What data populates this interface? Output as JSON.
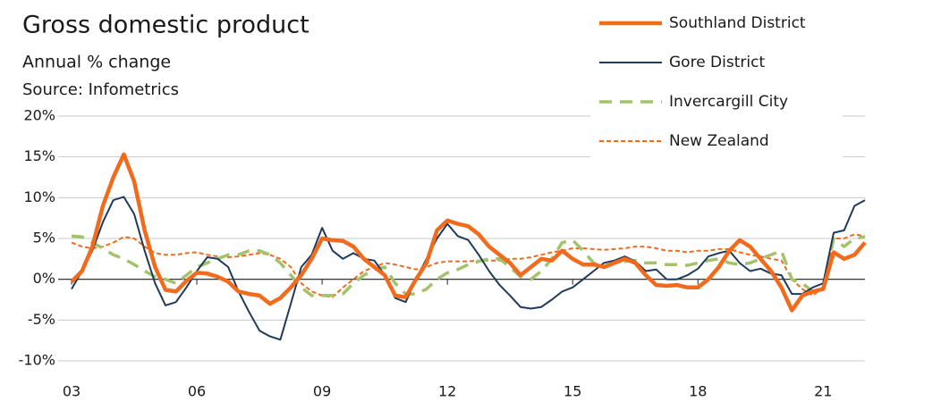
{
  "chart_data": {
    "type": "line",
    "title": "Gross domestic product",
    "subtitle": "Annual % change",
    "source": "Source: Infometrics",
    "x": [
      2003,
      2003.25,
      2003.5,
      2003.75,
      2004,
      2004.25,
      2004.5,
      2004.75,
      2005,
      2005.25,
      2005.5,
      2005.75,
      2006,
      2006.25,
      2006.5,
      2006.75,
      2007,
      2007.25,
      2007.5,
      2007.75,
      2008,
      2008.25,
      2008.5,
      2008.75,
      2009,
      2009.25,
      2009.5,
      2009.75,
      2010,
      2010.25,
      2010.5,
      2010.75,
      2011,
      2011.25,
      2011.5,
      2011.75,
      2012,
      2012.25,
      2012.5,
      2012.75,
      2013,
      2013.25,
      2013.5,
      2013.75,
      2014,
      2014.25,
      2014.5,
      2014.75,
      2015,
      2015.25,
      2015.5,
      2015.75,
      2016,
      2016.25,
      2016.5,
      2016.75,
      2017,
      2017.25,
      2017.5,
      2017.75,
      2018,
      2018.25,
      2018.5,
      2018.75,
      2019,
      2019.25,
      2019.5,
      2019.75,
      2020,
      2020.25,
      2020.5,
      2020.75,
      2021,
      2021.25,
      2021.5,
      2021.75,
      2022
    ],
    "series": [
      {
        "name": "Southland District",
        "color": "#f26b1d",
        "line_style": "solid",
        "width": 4.5,
        "values": [
          -0.3,
          1,
          4,
          9,
          12.5,
          15.3,
          12,
          6,
          1.5,
          -1.3,
          -1.5,
          -0.2,
          0.8,
          0.7,
          0.3,
          -0.3,
          -1.5,
          -1.8,
          -2,
          -3,
          -2.3,
          -1,
          0.5,
          2.5,
          5,
          4.8,
          4.7,
          4,
          2.5,
          1.5,
          0.5,
          -2,
          -2.2,
          0,
          2,
          6,
          7.2,
          6.8,
          6.5,
          5.5,
          4,
          3,
          2,
          0.5,
          1.5,
          2.5,
          2.3,
          3.5,
          2.5,
          1.8,
          1.8,
          1.5,
          2,
          2.5,
          2,
          0.5,
          -0.7,
          -0.8,
          -0.7,
          -1,
          -1,
          0,
          1.5,
          3.5,
          4.8,
          4,
          2.5,
          1,
          -1,
          -3.8,
          -2,
          -1.5,
          -1.2,
          3.3,
          2.5,
          3,
          4.5
        ]
      },
      {
        "name": "Gore District",
        "color": "#1f3a5a",
        "line_style": "solid",
        "width": 2,
        "values": [
          -1.2,
          1,
          3.5,
          7,
          9.7,
          10.1,
          8,
          3.5,
          -0.5,
          -3.2,
          -2.8,
          -1,
          1,
          2.7,
          2.5,
          1.5,
          -1.5,
          -4,
          -6.3,
          -7,
          -7.4,
          -3,
          1.5,
          3,
          6.3,
          3.5,
          2.5,
          3.2,
          2.5,
          2.3,
          0.5,
          -2.3,
          -2.8,
          0,
          2.5,
          5,
          6.8,
          5.3,
          4.8,
          3,
          1,
          -0.7,
          -2,
          -3.4,
          -3.6,
          -3.4,
          -2.5,
          -1.5,
          -1,
          0,
          1,
          2,
          2.3,
          2.8,
          2.2,
          1,
          1.2,
          0,
          0,
          0.5,
          1.3,
          2.8,
          3.2,
          3.5,
          2,
          1,
          1.3,
          0.7,
          0.5,
          -1.8,
          -1.8,
          -1,
          -0.5,
          5.7,
          6,
          9,
          9.7
        ]
      },
      {
        "name": "Invercargill City",
        "color": "#a3c36b",
        "line_style": "dashed",
        "width": 3.5,
        "values": [
          5.3,
          5.2,
          4.5,
          3.8,
          3,
          2.5,
          1.8,
          1,
          0.3,
          0,
          -0.5,
          0.5,
          1.5,
          2,
          2.5,
          3,
          3,
          3.5,
          3.5,
          3,
          2,
          0.5,
          -1,
          -2,
          -2,
          -2,
          -1.8,
          -0.5,
          0.5,
          1.2,
          1.5,
          -0.5,
          -1.8,
          -1.8,
          -1.2,
          0,
          0.8,
          1.2,
          1.8,
          2.2,
          2.5,
          2.5,
          1.5,
          0.3,
          0,
          1,
          2.5,
          4.5,
          4.8,
          3.5,
          2,
          1.5,
          2,
          2.2,
          2.3,
          2,
          2,
          1.8,
          1.8,
          1.7,
          2,
          2.3,
          2.5,
          2,
          1.8,
          2,
          2.5,
          3,
          3.5,
          0,
          -0.5,
          -1.5,
          -1,
          5,
          4,
          5,
          5.2
        ]
      },
      {
        "name": "New Zealand",
        "color": "#f26b1d",
        "line_style": "dotted",
        "width": 2,
        "values": [
          4.5,
          4,
          3.8,
          4,
          4.5,
          5.2,
          5,
          4,
          3.2,
          3,
          3,
          3.2,
          3.3,
          3,
          2.8,
          2.7,
          2.8,
          3,
          3.2,
          3,
          2.5,
          1.5,
          -0.5,
          -1.5,
          -2,
          -2.2,
          -1,
          0,
          1,
          1.5,
          2,
          1.8,
          1.5,
          1.2,
          1.5,
          2,
          2.2,
          2.2,
          2.2,
          2.3,
          2.3,
          2.3,
          2.5,
          2.5,
          2.7,
          3,
          3.3,
          3.5,
          3.8,
          3.8,
          3.7,
          3.6,
          3.7,
          3.8,
          4,
          4,
          3.8,
          3.5,
          3.5,
          3.3,
          3.5,
          3.5,
          3.7,
          3.7,
          3.3,
          3,
          2.8,
          2.5,
          2.3,
          0,
          -1.2,
          -2,
          -1,
          5,
          5,
          5.5,
          5.3
        ]
      }
    ],
    "xlim": [
      2003,
      2022
    ],
    "ylim": [
      -10,
      20
    ],
    "xticks": [
      {
        "value": 2003,
        "label": "03"
      },
      {
        "value": 2006,
        "label": "06"
      },
      {
        "value": 2009,
        "label": "09"
      },
      {
        "value": 2012,
        "label": "12"
      },
      {
        "value": 2015,
        "label": "15"
      },
      {
        "value": 2018,
        "label": "18"
      },
      {
        "value": 2021,
        "label": "21"
      }
    ],
    "yticks": [
      {
        "value": -10,
        "label": "-10%"
      },
      {
        "value": -5,
        "label": "-5%"
      },
      {
        "value": 0,
        "label": "0%"
      },
      {
        "value": 5,
        "label": "5%"
      },
      {
        "value": 10,
        "label": "10%"
      },
      {
        "value": 15,
        "label": "15%"
      },
      {
        "value": 20,
        "label": "20%"
      }
    ],
    "grid": true,
    "legend": "top-right"
  }
}
